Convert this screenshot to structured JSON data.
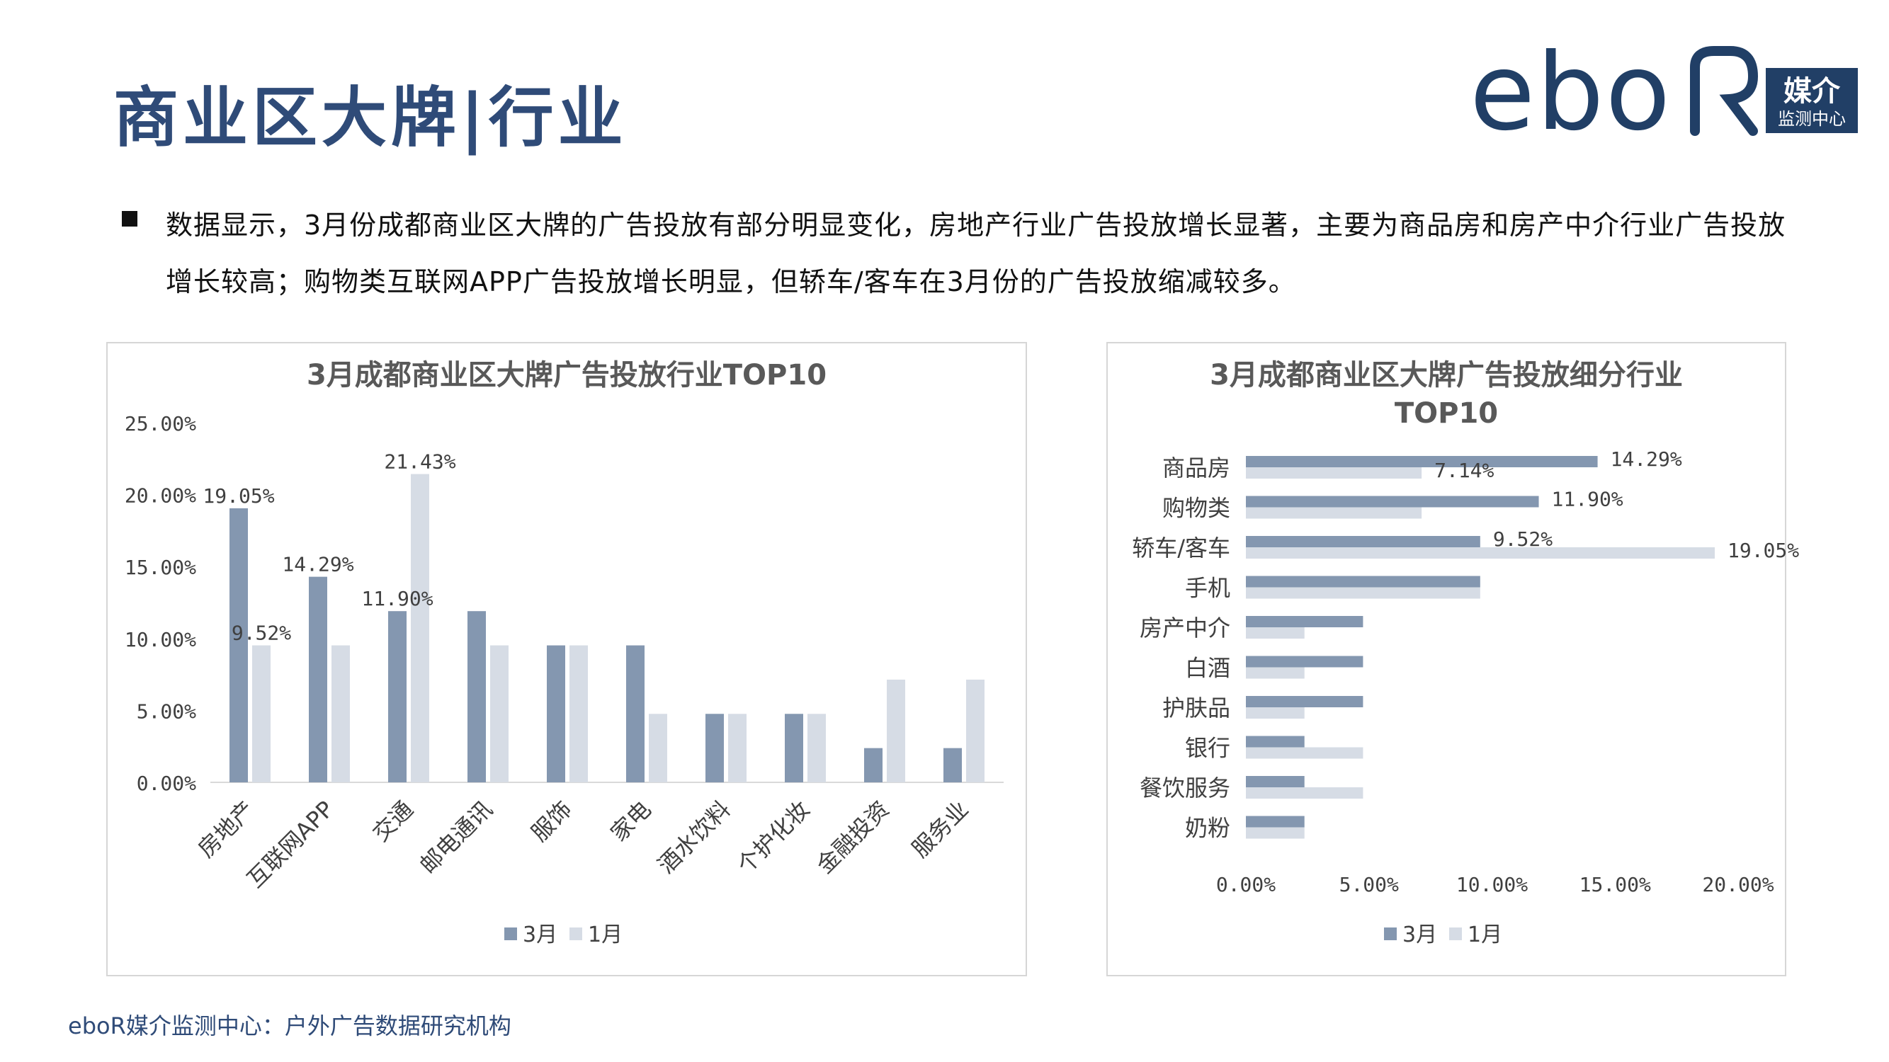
{
  "page": {
    "title": "商业区大牌|行业",
    "description": "数据显示，3月份成都商业区大牌的广告投放有部分明显变化，房地产行业广告投放增长显著，主要为商品房和房产中介行业广告投放增长较高；购物类互联网APP广告投放增长明显，但轿车/客车在3月份的广告投放缩减较多。",
    "footer": "eboR媒介监测中心：户外广告数据研究机构"
  },
  "logo": {
    "wordmark": "ebo",
    "badge_line1": "媒介",
    "badge_line2": "监测中心",
    "color": "#213f66"
  },
  "watermark_text": "eboR",
  "colors": {
    "march": "#8497b0",
    "january": "#d6dce5",
    "title": "#2f4b78",
    "chart_title": "#595959",
    "axis_text": "#404040"
  },
  "chart_data": [
    {
      "type": "bar",
      "title": "3月成都商业区大牌广告投放行业TOP10",
      "categories": [
        "房地产",
        "互联网APP",
        "交通",
        "邮电通讯",
        "服饰",
        "家电",
        "酒水饮料",
        "个护化妆",
        "金融投资",
        "服务业"
      ],
      "series": [
        {
          "name": "3月",
          "values": [
            19.05,
            14.29,
            11.9,
            11.9,
            9.52,
            9.52,
            4.76,
            4.76,
            2.38,
            2.38
          ]
        },
        {
          "name": "1月",
          "values": [
            9.52,
            9.52,
            21.43,
            9.52,
            9.52,
            4.76,
            4.76,
            4.76,
            7.14,
            7.14
          ]
        }
      ],
      "data_labels": [
        {
          "series": 0,
          "index": 0,
          "text": "19.05%"
        },
        {
          "series": 1,
          "index": 0,
          "text": "9.52%"
        },
        {
          "series": 0,
          "index": 1,
          "text": "14.29%"
        },
        {
          "series": 0,
          "index": 2,
          "text": "11.90%"
        },
        {
          "series": 1,
          "index": 2,
          "text": "21.43%"
        }
      ],
      "yticks": [
        "0.00%",
        "5.00%",
        "10.00%",
        "15.00%",
        "20.00%",
        "25.00%"
      ],
      "ylim": [
        0,
        25
      ],
      "legend": "bottom"
    },
    {
      "type": "bar",
      "orientation": "horizontal",
      "title": "3月成都商业区大牌广告投放细分行业TOP10",
      "categories": [
        "商品房",
        "购物类",
        "轿车/客车",
        "手机",
        "房产中介",
        "白酒",
        "护肤品",
        "银行",
        "餐饮服务",
        "奶粉"
      ],
      "series": [
        {
          "name": "3月",
          "values": [
            14.29,
            11.9,
            9.52,
            9.52,
            4.76,
            4.76,
            4.76,
            2.38,
            2.38,
            2.38
          ]
        },
        {
          "name": "1月",
          "values": [
            7.14,
            7.14,
            19.05,
            9.52,
            2.38,
            2.38,
            2.38,
            4.76,
            4.76,
            2.38
          ]
        }
      ],
      "data_labels": [
        {
          "series": 0,
          "index": 0,
          "text": "14.29%"
        },
        {
          "series": 1,
          "index": 0,
          "text": "7.14%"
        },
        {
          "series": 0,
          "index": 1,
          "text": "11.90%"
        },
        {
          "series": 0,
          "index": 2,
          "text": "9.52%"
        },
        {
          "series": 1,
          "index": 2,
          "text": "19.05%"
        }
      ],
      "xticks": [
        "0.00%",
        "5.00%",
        "10.00%",
        "15.00%",
        "20.00%"
      ],
      "xlim": [
        0,
        20
      ],
      "legend": "bottom"
    }
  ]
}
